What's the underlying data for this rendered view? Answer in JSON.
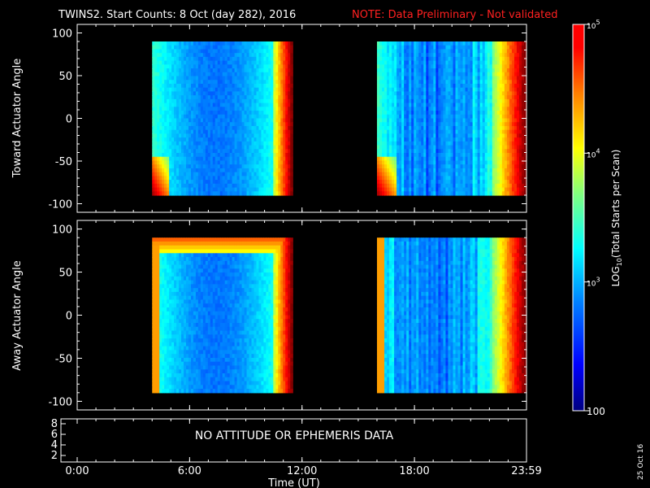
{
  "header": {
    "title": "TWINS2. Start Counts:  8 Oct (day 282), 2016",
    "note": "NOTE: Data Preliminary - Not validated",
    "note_color": "#ff2020"
  },
  "chart_data": [
    {
      "type": "heatmap",
      "panel": "toward",
      "ylabel": "Toward Actuator Angle",
      "ylim": [
        -110,
        110
      ],
      "yticks": [
        100,
        50,
        0,
        -50,
        -100
      ],
      "data_blocks": [
        {
          "x_start_hours": 4.0,
          "x_end_hours": 11.5,
          "y_range": [
            -90,
            90
          ]
        },
        {
          "x_start_hours": 16.0,
          "x_end_hours": 23.98,
          "y_range": [
            -90,
            90
          ]
        }
      ]
    },
    {
      "type": "heatmap",
      "panel": "away",
      "ylabel": "Away Actuator Angle",
      "ylim": [
        -110,
        110
      ],
      "yticks": [
        100,
        50,
        0,
        -50,
        -100
      ],
      "data_blocks": [
        {
          "x_start_hours": 4.0,
          "x_end_hours": 11.5,
          "y_range": [
            -90,
            90
          ]
        },
        {
          "x_start_hours": 16.0,
          "x_end_hours": 23.98,
          "y_range": [
            -90,
            90
          ]
        }
      ]
    },
    {
      "type": "line",
      "panel": "attitude",
      "yticks": [
        "8",
        "6",
        "4",
        "2"
      ],
      "message": "NO ATTITUDE OR EPHEMERIS DATA"
    }
  ],
  "x_axis": {
    "label": "Time (UT)",
    "range_hours": [
      0,
      23.98
    ],
    "ticks": [
      {
        "label": "0:00",
        "hours": 0
      },
      {
        "label": "6:00",
        "hours": 6
      },
      {
        "label": "12:00",
        "hours": 12
      },
      {
        "label": "18:00",
        "hours": 18
      },
      {
        "label": "23:59",
        "hours": 23.98
      }
    ]
  },
  "colorbar": {
    "label": "LOG10(Total Starts per Scan)",
    "label_main": "LOG",
    "label_sub": "10",
    "label_rest": "(Total Starts per Scan)",
    "ticks": [
      {
        "label": "10",
        "exp": "5",
        "value": 100000
      },
      {
        "label": "10",
        "exp": "4",
        "value": 10000
      },
      {
        "label": "10",
        "exp": "3",
        "value": 1000
      },
      {
        "label": "100",
        "exp": "",
        "value": 100
      }
    ],
    "min": 100,
    "max": 100000,
    "colors": [
      "#00007f",
      "#0000ff",
      "#0080ff",
      "#00ffff",
      "#80ff80",
      "#ffff00",
      "#ff8000",
      "#ff0000",
      "#ff0000"
    ]
  },
  "footer": {
    "date_stamp": "25 Oct 16"
  }
}
